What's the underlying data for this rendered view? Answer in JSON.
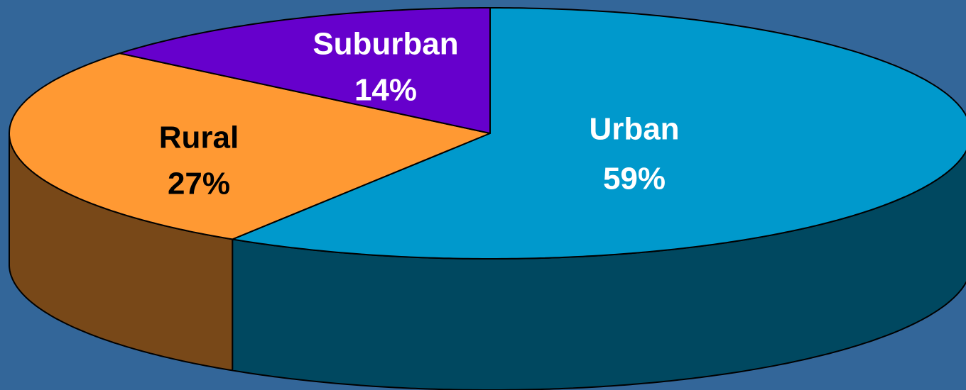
{
  "chart_data": {
    "type": "pie3d",
    "categories": [
      "Urban",
      "Rural",
      "Suburban"
    ],
    "values": [
      59,
      27,
      14
    ],
    "value_labels": [
      "59%",
      "27%",
      "14%"
    ],
    "colors": [
      "#0099cc",
      "#ff9933",
      "#6600cc"
    ]
  }
}
